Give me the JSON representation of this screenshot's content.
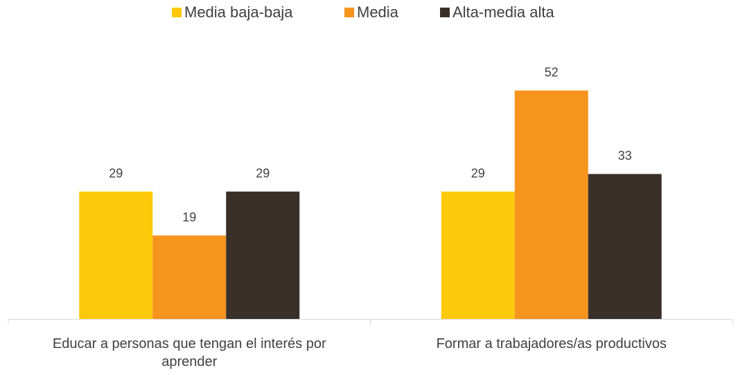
{
  "chart_data": {
    "type": "bar",
    "categories": [
      "Educar a personas que tengan el interés por aprender",
      "Formar a trabajadores/as productivos"
    ],
    "series": [
      {
        "name": "Media baja-baja",
        "color": "#FFC90B",
        "values": [
          29,
          29
        ]
      },
      {
        "name": "Media",
        "color": "#F7941E",
        "values": [
          19,
          52
        ]
      },
      {
        "name": "Alta-media alta",
        "color": "#3A302A",
        "values": [
          29,
          33
        ]
      }
    ],
    "ylim": [
      0,
      60
    ],
    "legend": "top",
    "data_labels": true
  }
}
